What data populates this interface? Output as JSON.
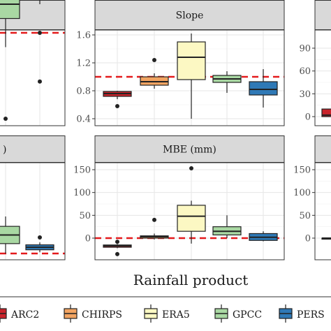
{
  "chart_data": {
    "type": "boxplot",
    "x_title": "Rainfall product",
    "legend_position": "bottom",
    "legend": [
      {
        "label": "ARC2",
        "color": "#c9232b"
      },
      {
        "label": "CHIRPS",
        "color": "#f2a462"
      },
      {
        "label": "ERA5",
        "color": "#fcf8c3"
      },
      {
        "label": "GPCC",
        "color": "#a9d8a3"
      },
      {
        "label": "PERSIANN",
        "label_visible": "PERS",
        "color": "#2f79b6"
      }
    ],
    "panels": [
      {
        "id": "left-top",
        "title": "",
        "y_ticks": [],
        "reference_line": 1.0,
        "boxes": [
          {
            "product": "GPCC",
            "whisker_low": 0.9,
            "q1": 1.1,
            "median": 1.2,
            "q3": 1.35,
            "whisker_high": 1.42,
            "outliers": [
              0.4
            ]
          },
          {
            "product": "PERSIANN",
            "whisker_low": 1.2,
            "q1": 1.28,
            "median": 1.32,
            "q3": 1.35,
            "whisker_high": 1.4,
            "outliers": [
              1.0,
              0.66
            ]
          }
        ]
      },
      {
        "id": "slope",
        "title": "Slope",
        "y_ticks": [
          0.4,
          0.8,
          1.2,
          1.6
        ],
        "ylim": [
          0.35,
          1.72
        ],
        "reference_line": 1.0,
        "boxes": [
          {
            "product": "ARC2",
            "whisker_low": 0.68,
            "q1": 0.72,
            "median": 0.76,
            "q3": 0.79,
            "whisker_high": 0.8,
            "outliers": [
              0.58
            ]
          },
          {
            "product": "CHIRPS",
            "whisker_low": 0.83,
            "q1": 0.88,
            "median": 0.93,
            "q3": 1.0,
            "whisker_high": 1.05,
            "outliers": [
              1.24
            ]
          },
          {
            "product": "ERA5",
            "whisker_low": 0.4,
            "q1": 0.96,
            "median": 1.28,
            "q3": 1.5,
            "whisker_high": 1.62,
            "outliers": []
          },
          {
            "product": "GPCC",
            "whisker_low": 0.77,
            "q1": 0.92,
            "median": 0.97,
            "q3": 1.02,
            "whisker_high": 1.08,
            "outliers": []
          },
          {
            "product": "PERSIANN",
            "whisker_low": 0.56,
            "q1": 0.74,
            "median": 0.82,
            "q3": 0.93,
            "whisker_high": 1.11,
            "outliers": []
          }
        ]
      },
      {
        "id": "right-top",
        "title": "",
        "y_ticks": [
          0,
          30,
          60,
          90
        ],
        "ylim": [
          -12,
          110
        ],
        "reference_line": null,
        "boxes": [
          {
            "product": "ARC2",
            "whisker_low": 0,
            "q1": 0,
            "median": 2,
            "q3": 10,
            "whisker_high": 10,
            "outliers": []
          }
        ]
      },
      {
        "id": "left-bottom",
        "title": "",
        "title_visible": ")",
        "y_ticks": [],
        "reference_line": 0,
        "boxes": [
          {
            "product": "GPCC",
            "whisker_low": 0,
            "q1": 8,
            "median": 15,
            "q3": 22,
            "whisker_high": 30,
            "outliers": []
          },
          {
            "product": "PERSIANN",
            "whisker_low": 1,
            "q1": 3,
            "median": 5,
            "q3": 7,
            "whisker_high": 9,
            "outliers": [
              13
            ]
          }
        ]
      },
      {
        "id": "mbe",
        "title": "MBE (mm)",
        "y_ticks": [
          0,
          50,
          100,
          150
        ],
        "ylim": [
          -38,
          162
        ],
        "reference_line": 0,
        "boxes": [
          {
            "product": "ARC2",
            "whisker_low": -22,
            "q1": -20,
            "median": -17,
            "q3": -15,
            "whisker_high": -13,
            "outliers": [
              -35,
              -8
            ]
          },
          {
            "product": "CHIRPS",
            "whisker_low": -3,
            "q1": 0,
            "median": 3,
            "q3": 5,
            "whisker_high": 10,
            "outliers": [
              40
            ]
          },
          {
            "product": "ERA5",
            "whisker_low": -12,
            "q1": 15,
            "median": 48,
            "q3": 72,
            "whisker_high": 82,
            "outliers": [
              153
            ]
          },
          {
            "product": "GPCC",
            "whisker_low": 0,
            "q1": 7,
            "median": 15,
            "q3": 25,
            "whisker_high": 50,
            "outliers": []
          },
          {
            "product": "PERSIANN",
            "whisker_low": -7,
            "q1": -5,
            "median": 2,
            "q3": 10,
            "whisker_high": 15,
            "outliers": []
          }
        ]
      },
      {
        "id": "right-bottom",
        "title": "",
        "y_ticks": [
          0,
          50,
          100,
          150
        ],
        "ylim": [
          -38,
          162
        ],
        "reference_line": null,
        "boxes": [
          {
            "product": "ARC2",
            "whisker_low": 0,
            "q1": 0,
            "median": 0,
            "q3": 0,
            "whisker_high": 0,
            "outliers": []
          }
        ]
      }
    ]
  },
  "strings": {
    "slope_title": "Slope",
    "mbe_title": "MBE (mm)",
    "left_bottom_title_fragment": ")",
    "x_title": "Rainfall product"
  }
}
